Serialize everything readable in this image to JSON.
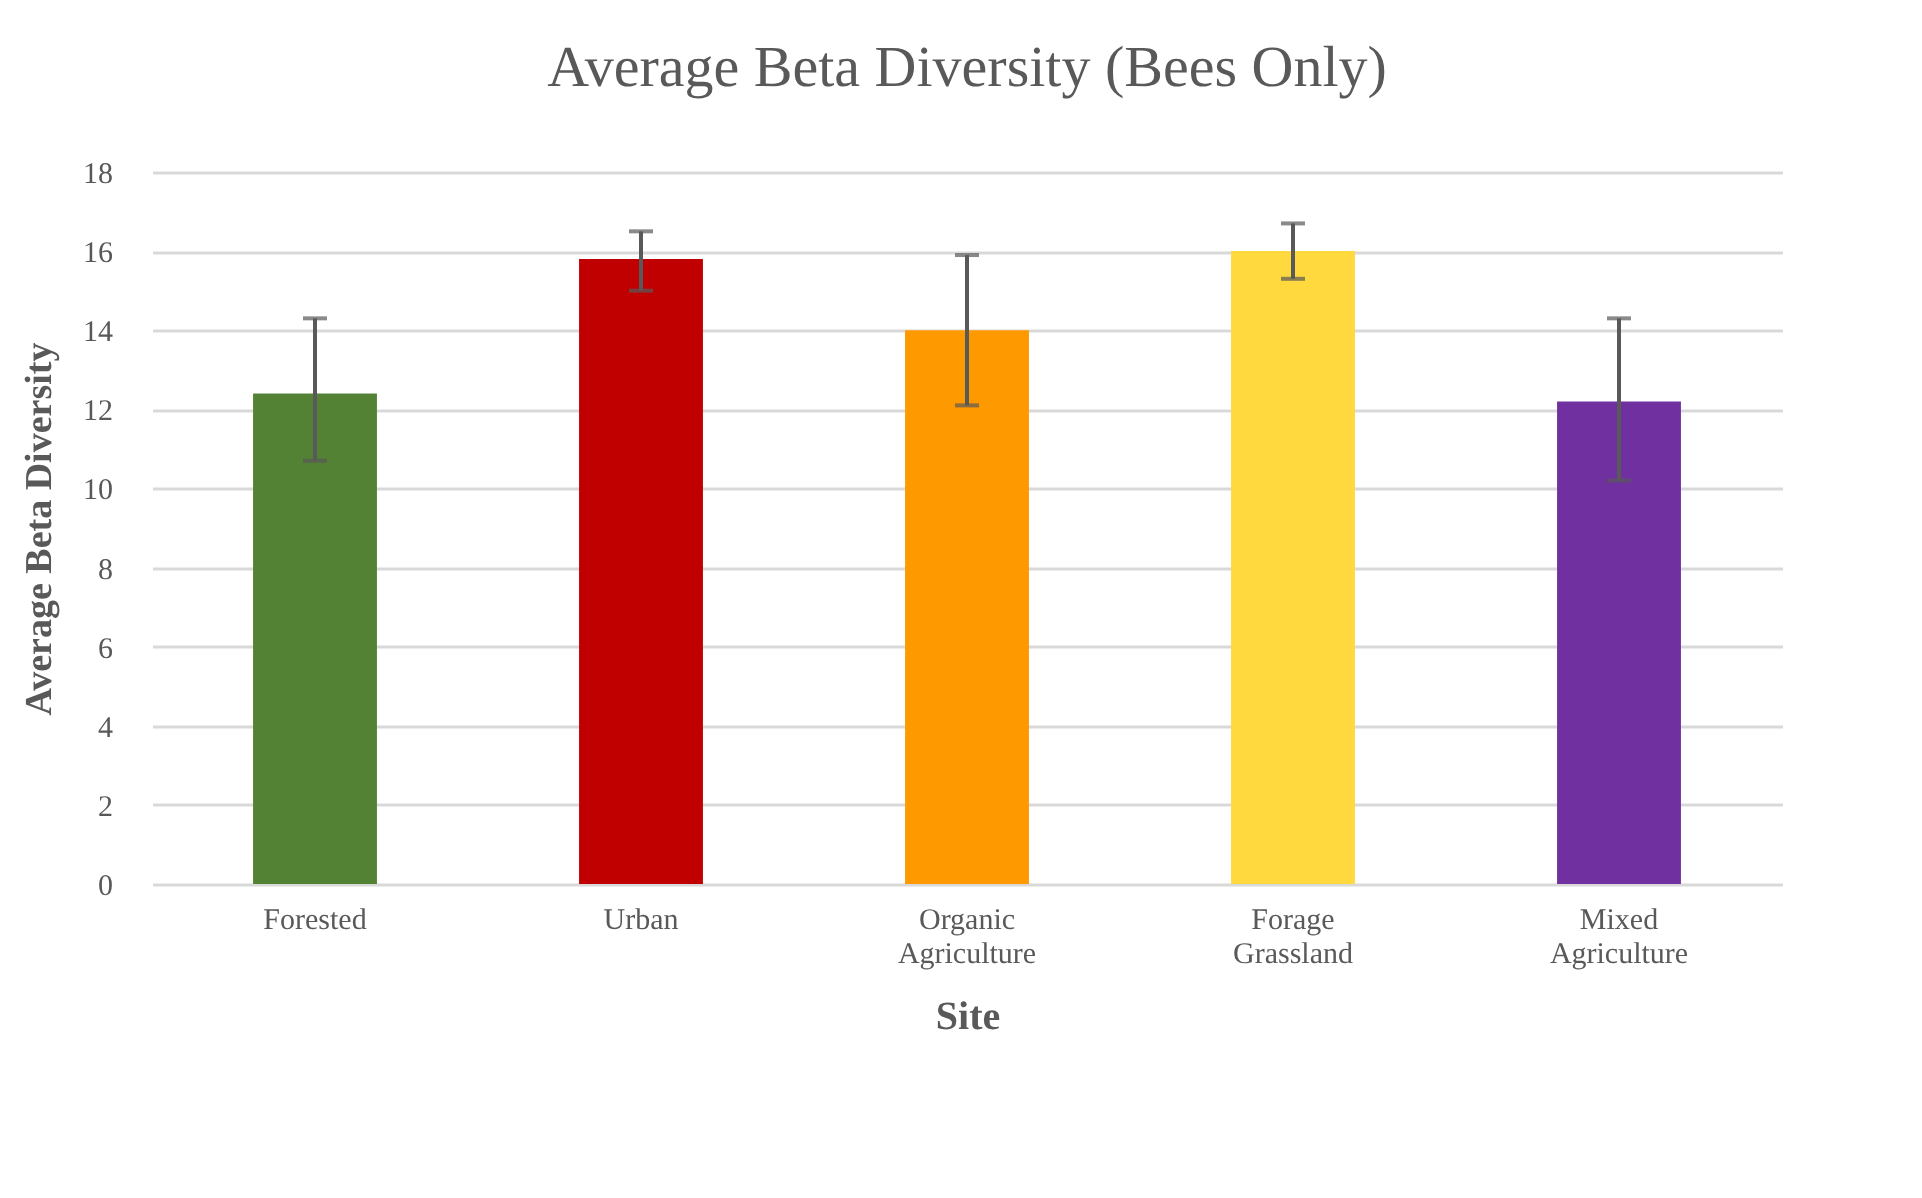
{
  "chart_data": {
    "type": "bar",
    "title": "Average Beta Diversity (Bees Only)",
    "xlabel": "Site",
    "ylabel": "Average Beta Diversity",
    "categories": [
      "Forested",
      "Urban",
      "Organic Agriculture",
      "Forage Grassland",
      "Mixed Agriculture"
    ],
    "values": [
      12.4,
      15.8,
      14.0,
      16.0,
      12.2
    ],
    "colors": [
      "#548235",
      "#c00000",
      "#ff9900",
      "#ffd93d",
      "#7030a0"
    ],
    "errors": [
      [
        10.7,
        14.3
      ],
      [
        15.0,
        16.5
      ],
      [
        12.1,
        15.9
      ],
      [
        15.3,
        16.7
      ],
      [
        10.2,
        14.3
      ]
    ],
    "ylim": [
      0,
      18
    ],
    "yticks": [
      0,
      2,
      4,
      6,
      8,
      10,
      12,
      14,
      16,
      18
    ],
    "grid": "y",
    "legend": false
  }
}
